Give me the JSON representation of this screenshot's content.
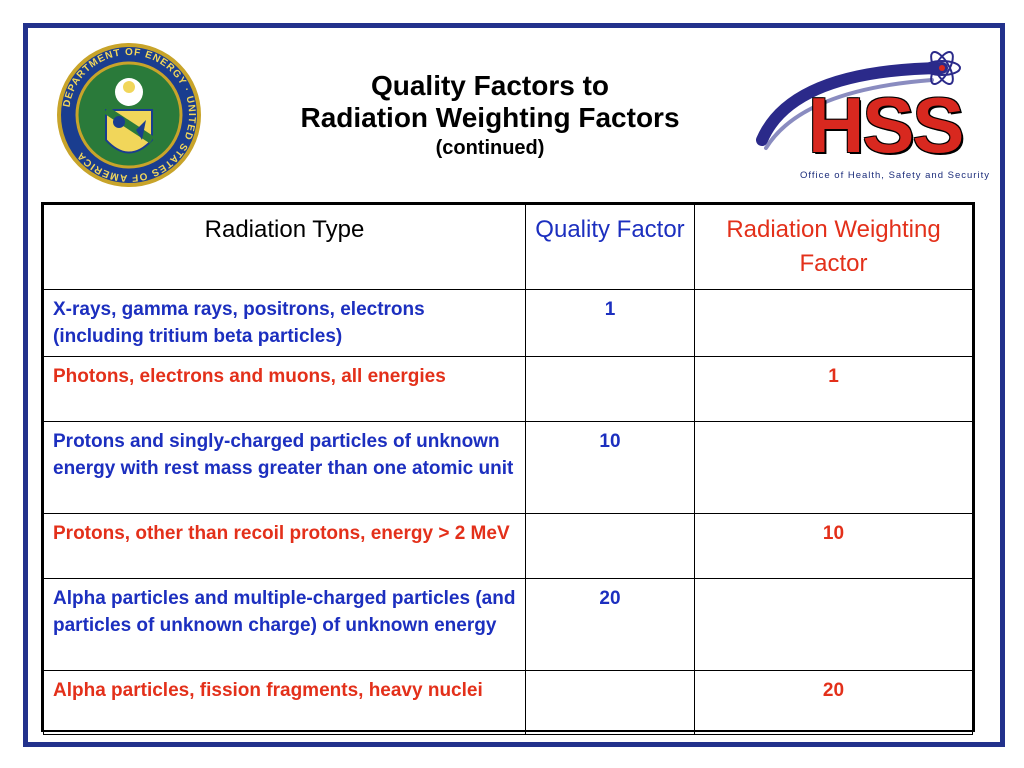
{
  "title": {
    "line1": "Quality Factors  to",
    "line2": "Radiation Weighting Factors",
    "subtitle": "(continued)"
  },
  "logos": {
    "doe_seal_text": "DEPARTMENT OF ENERGY · UNITED STATES OF AMERICA",
    "hss_text": "HSS",
    "hss_tagline": "Office of Health, Safety and Security"
  },
  "colors": {
    "frame": "#22318c",
    "quality_factor": "#1c2fbf",
    "weighting_factor": "#e3301a"
  },
  "table": {
    "headers": {
      "type": "Radiation Type",
      "quality": "Quality Factor",
      "weighting": "Radiation Weighting Factor"
    },
    "rows": [
      {
        "kind": "qf",
        "type": "X-rays, gamma rays, positrons, electrons (including tritium beta particles)",
        "quality": "1",
        "weighting": ""
      },
      {
        "kind": "rwf",
        "type": "Photons, electrons and muons, all energies",
        "quality": "",
        "weighting": "1"
      },
      {
        "kind": "qf",
        "type": "Protons and singly-charged particles of unknown energy with rest mass greater than one atomic unit",
        "quality": "10",
        "weighting": ""
      },
      {
        "kind": "rwf",
        "type": "Protons, other than recoil protons, energy > 2 MeV",
        "quality": "",
        "weighting": "10"
      },
      {
        "kind": "qf",
        "type": "Alpha particles and multiple-charged particles (and particles of unknown charge) of unknown energy",
        "quality": "20",
        "weighting": ""
      },
      {
        "kind": "rwf",
        "type": "Alpha particles, fission fragments, heavy nuclei",
        "quality": "",
        "weighting": "20"
      }
    ]
  }
}
